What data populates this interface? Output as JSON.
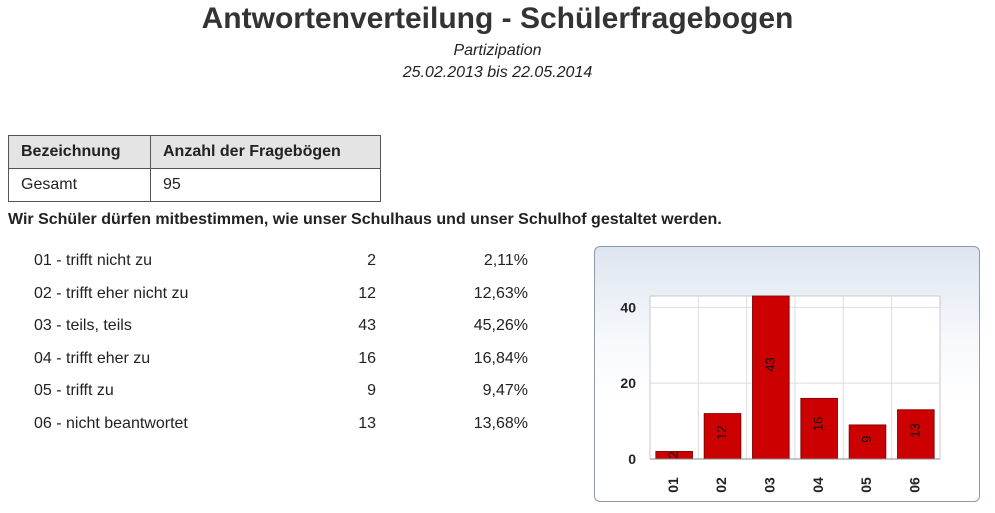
{
  "title": "Antwortenverteilung - Schülerfragebogen",
  "subtitle": "Partizipation",
  "date_range": "25.02.2013 bis 22.05.2014",
  "summary_table": {
    "headers": [
      "Bezeichnung",
      "Anzahl der Fragebögen"
    ],
    "rows": [
      [
        "Gesamt",
        "95"
      ]
    ]
  },
  "question": "Wir Schüler dürfen mitbestimmen, wie unser Schulhaus und unser Schulhof gestaltet werden.",
  "answers": [
    {
      "label": "01 - trifft nicht zu",
      "count": "2",
      "percent": "2,11%"
    },
    {
      "label": "02 - trifft eher nicht zu",
      "count": "12",
      "percent": "12,63%"
    },
    {
      "label": "03 - teils, teils",
      "count": "43",
      "percent": "45,26%"
    },
    {
      "label": "04 - trifft eher zu",
      "count": "16",
      "percent": "16,84%"
    },
    {
      "label": "05 - trifft zu",
      "count": "9",
      "percent": "9,47%"
    },
    {
      "label": "06 - nicht beantwortet",
      "count": "13",
      "percent": "13,68%"
    }
  ],
  "chart_data": {
    "type": "bar",
    "categories": [
      "01",
      "02",
      "03",
      "04",
      "05",
      "06"
    ],
    "values": [
      2,
      12,
      43,
      16,
      9,
      13
    ],
    "title": "",
    "xlabel": "",
    "ylabel": "",
    "ylim": [
      0,
      43
    ],
    "yticks": [
      0,
      20,
      40
    ],
    "grid": true,
    "legend": "none",
    "bar_color": "#cc0000",
    "data_labels": true
  }
}
